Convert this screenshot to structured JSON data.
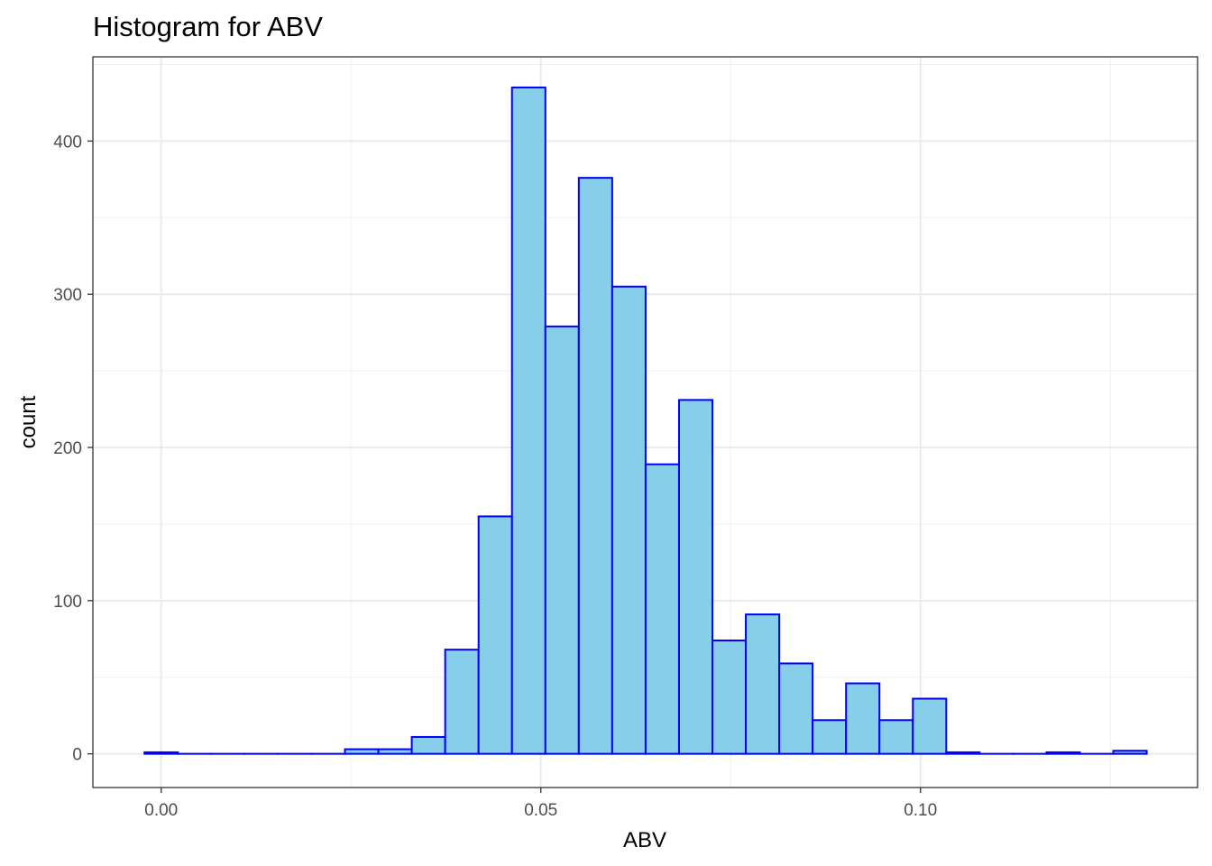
{
  "chart_data": {
    "type": "bar",
    "title": "Histogram for ABV",
    "xlabel": "ABV",
    "ylabel": "count",
    "x_ticks": [
      "0.00",
      "0.05",
      "0.10"
    ],
    "x_tick_values": [
      0.0,
      0.05,
      0.1
    ],
    "y_ticks": [
      "0",
      "100",
      "200",
      "300",
      "400"
    ],
    "y_tick_values": [
      0,
      100,
      200,
      300,
      400
    ],
    "xlim": [
      -0.009,
      0.1365
    ],
    "ylim": [
      -22,
      455
    ],
    "binwidth": 0.0044,
    "bins": [
      {
        "x": 0.0,
        "count": 1
      },
      {
        "x": 0.0044,
        "count": 0
      },
      {
        "x": 0.0088,
        "count": 0
      },
      {
        "x": 0.0132,
        "count": 0
      },
      {
        "x": 0.0176,
        "count": 0
      },
      {
        "x": 0.022,
        "count": 0
      },
      {
        "x": 0.0264,
        "count": 3
      },
      {
        "x": 0.0308,
        "count": 3
      },
      {
        "x": 0.0352,
        "count": 11
      },
      {
        "x": 0.0396,
        "count": 68
      },
      {
        "x": 0.044,
        "count": 155
      },
      {
        "x": 0.0484,
        "count": 435
      },
      {
        "x": 0.0528,
        "count": 279
      },
      {
        "x": 0.0572,
        "count": 376
      },
      {
        "x": 0.0616,
        "count": 305
      },
      {
        "x": 0.066,
        "count": 189
      },
      {
        "x": 0.0704,
        "count": 231
      },
      {
        "x": 0.0748,
        "count": 74
      },
      {
        "x": 0.0792,
        "count": 91
      },
      {
        "x": 0.0836,
        "count": 59
      },
      {
        "x": 0.088,
        "count": 22
      },
      {
        "x": 0.0924,
        "count": 46
      },
      {
        "x": 0.0968,
        "count": 22
      },
      {
        "x": 0.1012,
        "count": 36
      },
      {
        "x": 0.1056,
        "count": 1
      },
      {
        "x": 0.11,
        "count": 0
      },
      {
        "x": 0.1144,
        "count": 0
      },
      {
        "x": 0.1188,
        "count": 1
      },
      {
        "x": 0.1232,
        "count": 0
      },
      {
        "x": 0.1276,
        "count": 2
      }
    ],
    "grid": true,
    "bar_fill": "#87ceeb",
    "bar_outline": "#0000ff"
  }
}
